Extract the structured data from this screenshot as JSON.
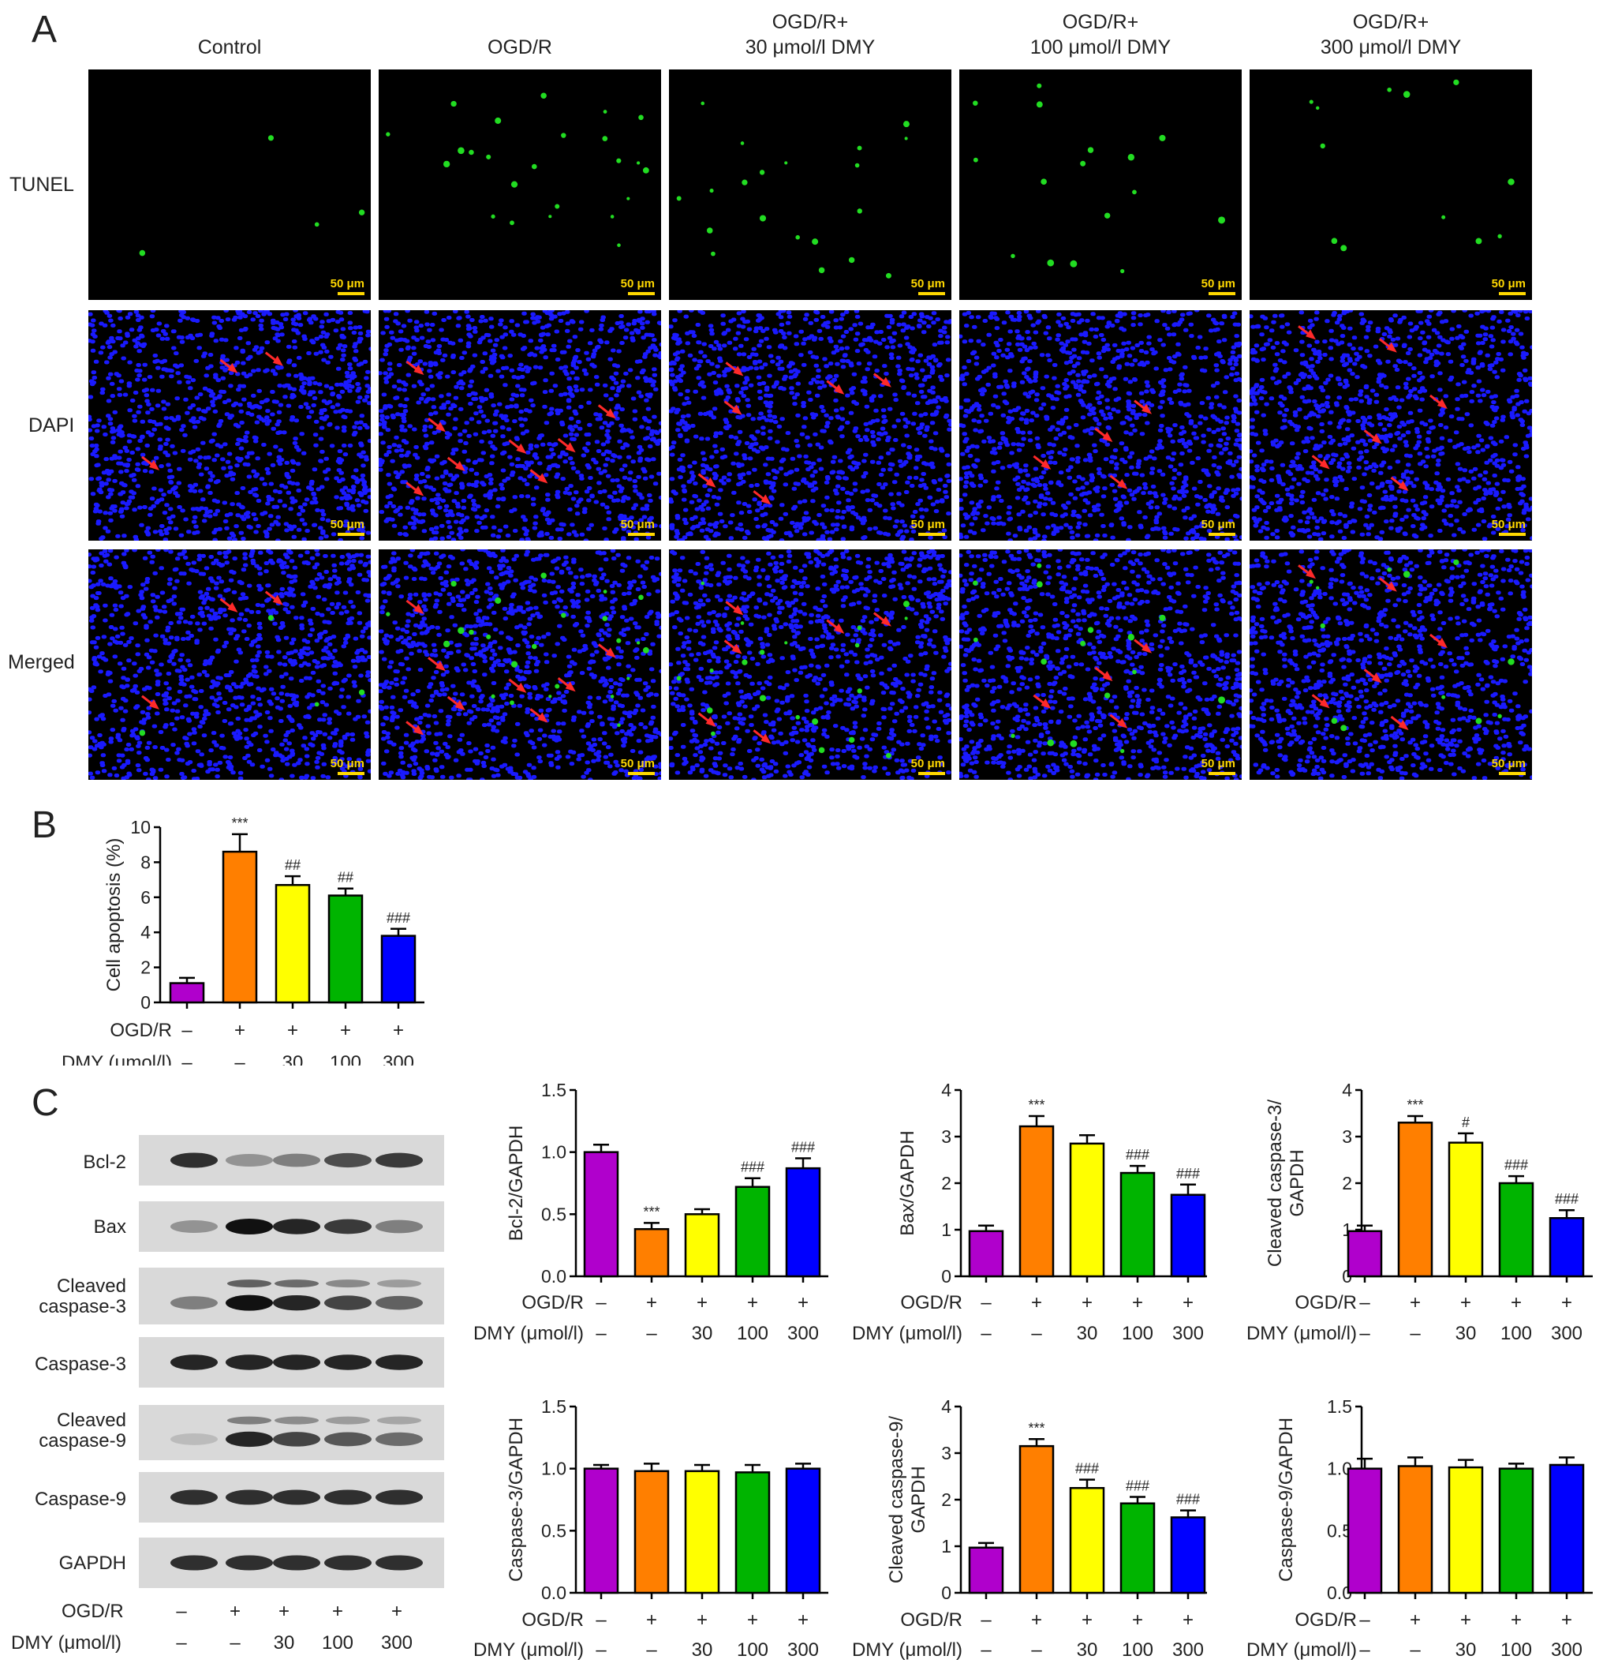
{
  "panel_a": {
    "letter": "A",
    "columns": [
      {
        "line1": "",
        "line2": "Control"
      },
      {
        "line1": "",
        "line2": "OGD/R"
      },
      {
        "line1": "OGD/R+",
        "line2": "30 μmol/l DMY"
      },
      {
        "line1": "OGD/R+",
        "line2": "100 μmol/l DMY"
      },
      {
        "line1": "OGD/R+",
        "line2": "300 μmol/l DMY"
      }
    ],
    "rows": [
      "TUNEL",
      "DAPI",
      "Merged"
    ],
    "scale_bar": "50 μm",
    "colors": {
      "tunel": "#22dd22",
      "dapi": "#1a1aff",
      "arrow": "#ff2a2a",
      "scale": "#ffd800"
    }
  },
  "panel_b": {
    "letter": "B"
  },
  "panel_c": {
    "letter": "C",
    "blot_labels": [
      "Bcl-2",
      "Bax",
      "Cleaved caspase-3",
      "Caspase-3",
      "Cleaved caspase-9",
      "Caspase-9",
      "GAPDH"
    ]
  },
  "conditions": {
    "ogdr_label": "OGD/R",
    "dmy_label": "DMY (μmol/l)",
    "ogdr": [
      "–",
      "+",
      "+",
      "+",
      "+"
    ],
    "dmy": [
      "–",
      "–",
      "30",
      "100",
      "300"
    ]
  },
  "bar_colors": [
    "#b000cc",
    "#ff7f00",
    "#ffff00",
    "#00b400",
    "#0000ff"
  ],
  "chart_data": [
    {
      "id": "B",
      "type": "bar",
      "ylabel": "Cell apoptosis (%)",
      "ylim": [
        0,
        10
      ],
      "yticks": [
        0,
        2,
        4,
        6,
        8,
        10
      ],
      "values": [
        1.1,
        8.6,
        6.7,
        6.1,
        3.8
      ],
      "errors": [
        0.3,
        1.0,
        0.5,
        0.4,
        0.4
      ],
      "annotations": [
        "",
        "***",
        "##",
        "##",
        "###"
      ]
    },
    {
      "id": "bcl2",
      "type": "bar",
      "ylabel": "Bcl-2/GAPDH",
      "ylim": [
        0,
        1.5
      ],
      "yticks": [
        "0.0",
        "0.5",
        "1.0",
        "1.5"
      ],
      "values": [
        1.0,
        0.38,
        0.5,
        0.72,
        0.87
      ],
      "errors": [
        0.06,
        0.05,
        0.04,
        0.07,
        0.08
      ],
      "annotations": [
        "",
        "***",
        "",
        "###",
        "###"
      ]
    },
    {
      "id": "bax",
      "type": "bar",
      "ylabel": "Bax/GAPDH",
      "ylim": [
        0,
        4
      ],
      "yticks": [
        "0",
        "1",
        "2",
        "3",
        "4"
      ],
      "values": [
        0.97,
        3.22,
        2.85,
        2.22,
        1.75
      ],
      "errors": [
        0.12,
        0.22,
        0.18,
        0.15,
        0.22
      ],
      "annotations": [
        "",
        "***",
        "",
        "###",
        "###"
      ]
    },
    {
      "id": "ccasp3",
      "type": "bar",
      "ylabel_lines": [
        "Cleaved caspase-3/",
        "GAPDH"
      ],
      "ylim": [
        0,
        4
      ],
      "yticks": [
        "0",
        "1",
        "2",
        "3",
        "4"
      ],
      "values": [
        0.97,
        3.3,
        2.87,
        2.0,
        1.25
      ],
      "errors": [
        0.12,
        0.14,
        0.2,
        0.15,
        0.17
      ],
      "annotations": [
        "",
        "***",
        "#",
        "###",
        "###"
      ]
    },
    {
      "id": "casp3",
      "type": "bar",
      "ylabel": "Caspase-3/GAPDH",
      "ylim": [
        0,
        1.5
      ],
      "yticks": [
        "0.0",
        "0.5",
        "1.0",
        "1.5"
      ],
      "values": [
        1.0,
        0.98,
        0.98,
        0.97,
        1.0
      ],
      "errors": [
        0.03,
        0.06,
        0.05,
        0.06,
        0.04
      ],
      "annotations": [
        "",
        "",
        "",
        "",
        ""
      ]
    },
    {
      "id": "ccasp9",
      "type": "bar",
      "ylabel_lines": [
        "Cleaved caspase-9/",
        "GAPDH"
      ],
      "ylim": [
        0,
        4
      ],
      "yticks": [
        "0",
        "1",
        "2",
        "3",
        "4"
      ],
      "values": [
        0.97,
        3.15,
        2.25,
        1.92,
        1.62
      ],
      "errors": [
        0.1,
        0.15,
        0.18,
        0.14,
        0.15
      ],
      "annotations": [
        "",
        "***",
        "###",
        "###",
        "###"
      ]
    },
    {
      "id": "casp9",
      "type": "bar",
      "ylabel": "Caspase-9/GAPDH",
      "ylim": [
        0,
        1.5
      ],
      "yticks": [
        "0.0",
        "0.5",
        "1.0",
        "1.5"
      ],
      "values": [
        1.0,
        1.02,
        1.01,
        1.0,
        1.03
      ],
      "errors": [
        0.08,
        0.07,
        0.06,
        0.04,
        0.06
      ],
      "annotations": [
        "",
        "",
        "",
        "",
        ""
      ]
    }
  ]
}
